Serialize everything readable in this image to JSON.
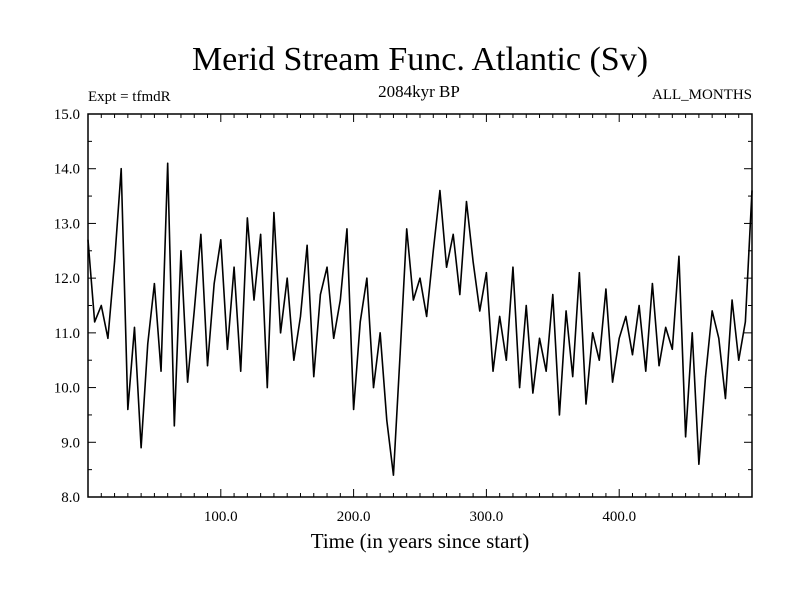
{
  "header": {
    "title": "Merid Stream Func. Atlantic (Sv)",
    "experiment": "Expt = tfmdR",
    "period": "2084kyr BP",
    "months": "ALL_MONTHS"
  },
  "chart_data": {
    "type": "line",
    "title": "Merid Stream Func. Atlantic (Sv)",
    "xlabel": "Time (in years since start)",
    "ylabel": "",
    "xlim": [
      0,
      500
    ],
    "ylim": [
      8.0,
      15.0
    ],
    "x_ticks": [
      {
        "value": 100,
        "label": "100.0"
      },
      {
        "value": 200,
        "label": "200.0"
      },
      {
        "value": 300,
        "label": "300.0"
      },
      {
        "value": 400,
        "label": "400.0"
      }
    ],
    "y_ticks": [
      {
        "value": 8.0,
        "label": "8.0"
      },
      {
        "value": 9.0,
        "label": "9.0"
      },
      {
        "value": 10.0,
        "label": "10.0"
      },
      {
        "value": 11.0,
        "label": "11.0"
      },
      {
        "value": 12.0,
        "label": "12.0"
      },
      {
        "value": 13.0,
        "label": "13.0"
      },
      {
        "value": 14.0,
        "label": "14.0"
      },
      {
        "value": 15.0,
        "label": "15.0"
      }
    ],
    "series": [
      {
        "name": "Merid Stream Func. Atlantic",
        "color": "#000000",
        "x": [
          0,
          5,
          10,
          15,
          20,
          25,
          30,
          35,
          40,
          45,
          50,
          55,
          60,
          65,
          70,
          75,
          80,
          85,
          90,
          95,
          100,
          105,
          110,
          115,
          120,
          125,
          130,
          135,
          140,
          145,
          150,
          155,
          160,
          165,
          170,
          175,
          180,
          185,
          190,
          195,
          200,
          205,
          210,
          215,
          220,
          225,
          230,
          235,
          240,
          245,
          250,
          255,
          260,
          265,
          270,
          275,
          280,
          285,
          290,
          295,
          300,
          305,
          310,
          315,
          320,
          325,
          330,
          335,
          340,
          345,
          350,
          355,
          360,
          365,
          370,
          375,
          380,
          385,
          390,
          395,
          400,
          405,
          410,
          415,
          420,
          425,
          430,
          435,
          440,
          445,
          450,
          455,
          460,
          465,
          470,
          475,
          480,
          485,
          490,
          495,
          500
        ],
        "y": [
          12.7,
          11.2,
          11.5,
          10.9,
          12.3,
          14.0,
          9.6,
          11.1,
          8.9,
          10.8,
          11.9,
          10.3,
          14.1,
          9.3,
          12.5,
          10.1,
          11.4,
          12.8,
          10.4,
          11.9,
          12.7,
          10.7,
          12.2,
          10.3,
          13.1,
          11.6,
          12.8,
          10.0,
          13.2,
          11.0,
          12.0,
          10.5,
          11.3,
          12.6,
          10.2,
          11.7,
          12.2,
          10.9,
          11.6,
          12.9,
          9.6,
          11.2,
          12.0,
          10.0,
          11.0,
          9.4,
          8.4,
          10.6,
          12.9,
          11.6,
          12.0,
          11.3,
          12.5,
          13.6,
          12.2,
          12.8,
          11.7,
          13.4,
          12.3,
          11.4,
          12.1,
          10.3,
          11.3,
          10.5,
          12.2,
          10.0,
          11.5,
          9.9,
          10.9,
          10.3,
          11.7,
          9.5,
          11.4,
          10.2,
          12.1,
          9.7,
          11.0,
          10.5,
          11.8,
          10.1,
          10.9,
          11.3,
          10.6,
          11.5,
          10.3,
          11.9,
          10.4,
          11.1,
          10.7,
          12.4,
          9.1,
          11.0,
          8.6,
          10.2,
          11.4,
          10.9,
          9.8,
          11.6,
          10.5,
          11.2,
          13.6
        ]
      }
    ]
  }
}
